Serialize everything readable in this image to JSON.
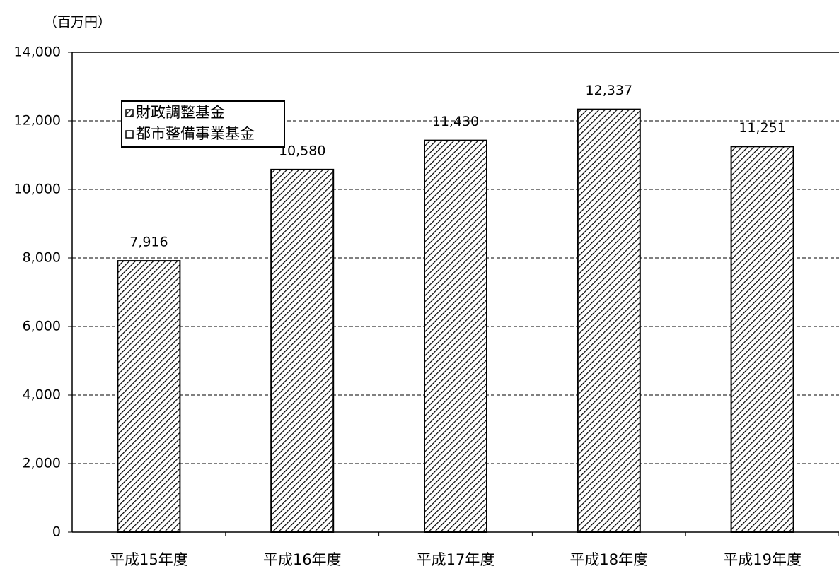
{
  "chart_data": {
    "type": "bar",
    "y_unit": "（百万円）",
    "categories": [
      "平成15年度",
      "平成16年度",
      "平成17年度",
      "平成18年度",
      "平成19年度"
    ],
    "series": [
      {
        "name": "財政調整基金",
        "color": "#000000",
        "pattern": "hatch",
        "values": [
          7916,
          10580,
          11430,
          12337,
          11251
        ],
        "value_labels": [
          "7,916",
          "10,580",
          "11,430",
          "12,337",
          "11,251"
        ]
      },
      {
        "name": "都市整備事業基金",
        "color": "#ffffff",
        "values": [
          0,
          0,
          0,
          0,
          0
        ]
      }
    ],
    "stacked": true,
    "ylim": [
      0,
      14000
    ],
    "yticks": [
      0,
      {
        "value": 2000,
        "label": "2,000"
      },
      {
        "value": 4000,
        "label": "4,000"
      },
      {
        "value": 6000,
        "label": "6,000"
      },
      {
        "value": 8000,
        "label": "8,000"
      },
      {
        "value": 10000,
        "label": "10,000"
      },
      {
        "value": 12000,
        "label": "12,000"
      },
      {
        "value": 14000,
        "label": "14,000"
      }
    ],
    "grid": true,
    "legend": "upper-left"
  }
}
